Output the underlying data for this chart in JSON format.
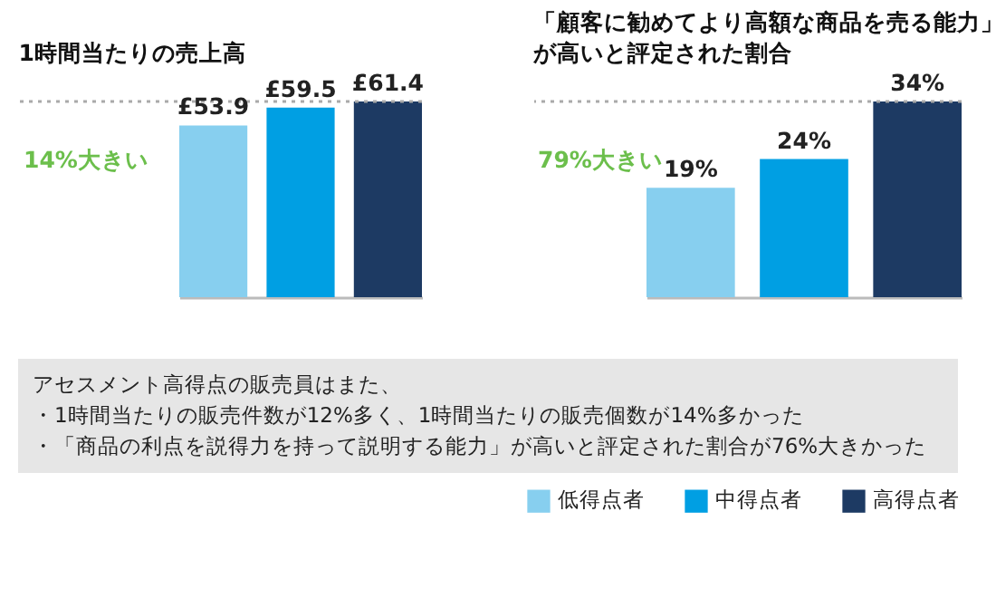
{
  "chart_data": [
    {
      "type": "bar",
      "title": "1時間当たりの売上高",
      "categories": [
        null
      ],
      "series": [
        {
          "name": "低得点者",
          "color": "#87cfef",
          "values": [
            53.9
          ],
          "value_labels": [
            "£53.9"
          ]
        },
        {
          "name": "中得点者",
          "color": "#009fe3",
          "values": [
            59.5
          ],
          "value_labels": [
            "£59.5"
          ]
        },
        {
          "name": "高得点者",
          "color": "#1d3a63",
          "values": [
            61.4
          ],
          "value_labels": [
            "£61.4"
          ]
        }
      ],
      "annotations": [
        "14%大きい"
      ],
      "legend": "bottom right",
      "ref_lines": [
        {
          "axis": "y",
          "value": 61.4,
          "line_style": "dotted",
          "color": "#aaaaaa"
        }
      ]
    },
    {
      "type": "bar",
      "title": "「顧客に勧めてより高額な商品を売る能力」が高いと評定された割合",
      "categories": [
        null
      ],
      "series": [
        {
          "name": "低得点者",
          "color": "#87cfef",
          "values": [
            19
          ],
          "value_labels": [
            "19%"
          ]
        },
        {
          "name": "中得点者",
          "color": "#009fe3",
          "values": [
            24
          ],
          "value_labels": [
            "24%"
          ]
        },
        {
          "name": "高得点者",
          "color": "#1d3a63",
          "values": [
            34
          ],
          "value_labels": [
            "34%"
          ]
        }
      ],
      "annotations": [
        "79%大きい"
      ],
      "legend": "bottom",
      "ref_lines": [
        {
          "axis": "y",
          "value": 34,
          "line_style": "dotted",
          "color": "#aaaaaa"
        }
      ]
    },
    {
      "type": "other",
      "annotations": [
        "アセスメント高得点の販売員はまた、",
        "・1時間当たりの販売件数が12%多く、1時間当たりの販売個数が14%多かった",
        "・「商品の利点を説得力を持って説明する能力」が高いと評定された割合が76%大きかった"
      ]
    }
  ]
}
